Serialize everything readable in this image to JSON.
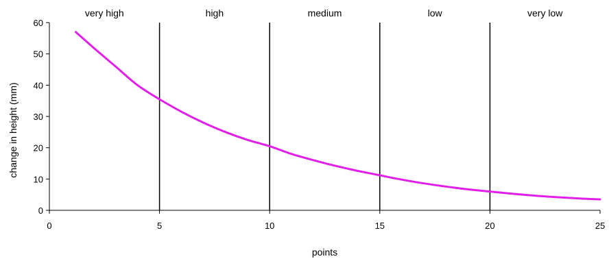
{
  "chart_data": {
    "type": "line",
    "xlabel": "points",
    "ylabel": "change in height  (mm)",
    "xlim": [
      0,
      25
    ],
    "ylim": [
      0,
      60
    ],
    "xticks": [
      0,
      5,
      10,
      15,
      20,
      25
    ],
    "yticks": [
      0,
      10,
      20,
      30,
      40,
      50,
      60
    ],
    "color": "#e020e8",
    "grid": false,
    "legend": "none",
    "dividers": [
      5,
      10,
      15,
      20
    ],
    "bands": [
      {
        "label": "very high",
        "x_from": 0,
        "x_to": 5
      },
      {
        "label": "high",
        "x_from": 5,
        "x_to": 10
      },
      {
        "label": "medium",
        "x_from": 10,
        "x_to": 15
      },
      {
        "label": "low",
        "x_from": 15,
        "x_to": 20
      },
      {
        "label": "very low",
        "x_from": 20,
        "x_to": 25
      }
    ],
    "series": [
      {
        "x": [
          1.2,
          2,
          3,
          4,
          5,
          6,
          7,
          8,
          9,
          10,
          11,
          12,
          13,
          14,
          15,
          16,
          17,
          18,
          19,
          20,
          21,
          22,
          23,
          24,
          25
        ],
        "y": [
          57,
          52,
          46,
          40,
          35.5,
          31.5,
          28,
          25,
          22.5,
          20.5,
          18,
          16,
          14.2,
          12.6,
          11.2,
          9.8,
          8.6,
          7.6,
          6.7,
          6,
          5.3,
          4.7,
          4.2,
          3.8,
          3.5
        ]
      }
    ]
  }
}
